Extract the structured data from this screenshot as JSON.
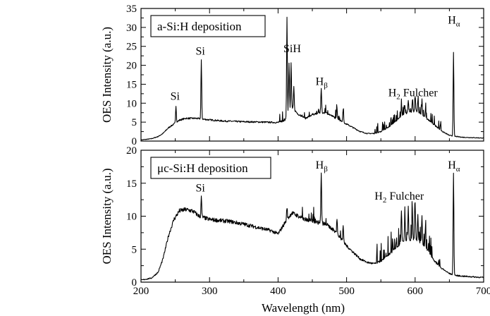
{
  "chart_data": [
    {
      "type": "line",
      "panel": "top",
      "xlabel": "",
      "ylabel": "OES Intensity (a.u.)",
      "xlim": [
        200,
        700
      ],
      "ylim": [
        0,
        35
      ],
      "y_ticks": [
        "0",
        "5",
        "10",
        "15",
        "20",
        "25",
        "30",
        "35"
      ],
      "box_label": "a-Si:H deposition",
      "annotations": [
        {
          "text": "Si",
          "sub": "",
          "x": 251
        },
        {
          "text": "Si",
          "sub": "",
          "x": 288
        },
        {
          "text": "SiH",
          "sub": "",
          "x": 414
        },
        {
          "text": "H",
          "sub": "β",
          "x": 463
        },
        {
          "text": "H",
          "sub": "2",
          "text2": " Fulcher",
          "x": 602
        },
        {
          "text": "H",
          "sub": "α",
          "x": 656
        }
      ],
      "baseline": [
        [
          200,
          0.3
        ],
        [
          215,
          0.6
        ],
        [
          225,
          1.2
        ],
        [
          232,
          2.0
        ],
        [
          240,
          3.5
        ],
        [
          248,
          4.5
        ],
        [
          256,
          5.5
        ],
        [
          265,
          6.0
        ],
        [
          280,
          6.0
        ],
        [
          300,
          5.6
        ],
        [
          320,
          5.3
        ],
        [
          350,
          5.1
        ],
        [
          380,
          5.0
        ],
        [
          400,
          4.9
        ],
        [
          410,
          5.5
        ],
        [
          420,
          9.0
        ],
        [
          430,
          7.0
        ],
        [
          440,
          6.0
        ],
        [
          450,
          7.0
        ],
        [
          460,
          7.5
        ],
        [
          470,
          7.5
        ],
        [
          480,
          6.5
        ],
        [
          490,
          5.5
        ],
        [
          500,
          4.5
        ],
        [
          510,
          3.5
        ],
        [
          520,
          2.5
        ],
        [
          530,
          2.0
        ],
        [
          540,
          2.0
        ],
        [
          550,
          2.5
        ],
        [
          560,
          3.5
        ],
        [
          570,
          5.0
        ],
        [
          580,
          6.5
        ],
        [
          590,
          7.5
        ],
        [
          600,
          8.0
        ],
        [
          610,
          7.0
        ],
        [
          620,
          5.5
        ],
        [
          630,
          4.0
        ],
        [
          640,
          2.5
        ],
        [
          650,
          1.5
        ],
        [
          660,
          1.2
        ],
        [
          670,
          1.0
        ],
        [
          685,
          0.9
        ],
        [
          700,
          0.8
        ]
      ],
      "peaks": [
        [
          251,
          4.5
        ],
        [
          288,
          15.5
        ],
        [
          413,
          26
        ],
        [
          416,
          13
        ],
        [
          419,
          12
        ],
        [
          423,
          6
        ],
        [
          463,
          6.5
        ],
        [
          486,
          3
        ],
        [
          495,
          3.5
        ],
        [
          580,
          3
        ],
        [
          585,
          2.5
        ],
        [
          590,
          3.5
        ],
        [
          596,
          3
        ],
        [
          600,
          3.5
        ],
        [
          604,
          3
        ],
        [
          610,
          3
        ],
        [
          615,
          2
        ],
        [
          656,
          22
        ]
      ]
    },
    {
      "type": "line",
      "panel": "bottom",
      "xlabel": "Wavelength (nm)",
      "ylabel": "OES Intensity (a.u.)",
      "xlim": [
        200,
        700
      ],
      "ylim": [
        0,
        20
      ],
      "x_ticks": [
        "200",
        "300",
        "400",
        "500",
        "600",
        "700"
      ],
      "y_ticks": [
        "0",
        "5",
        "10",
        "15",
        "20"
      ],
      "box_label": "μc-Si:H deposition",
      "annotations": [
        {
          "text": "Si",
          "sub": "",
          "x": 288
        },
        {
          "text": "H",
          "sub": "β",
          "x": 463
        },
        {
          "text": "H",
          "sub": "2",
          "text2": " Fulcher",
          "x": 582
        },
        {
          "text": "H",
          "sub": "α",
          "x": 656
        }
      ],
      "baseline": [
        [
          200,
          0.3
        ],
        [
          215,
          0.6
        ],
        [
          225,
          1.5
        ],
        [
          232,
          3.5
        ],
        [
          240,
          7.0
        ],
        [
          248,
          9.5
        ],
        [
          256,
          10.8
        ],
        [
          265,
          11.0
        ],
        [
          275,
          10.8
        ],
        [
          285,
          10.0
        ],
        [
          300,
          9.5
        ],
        [
          330,
          9.2
        ],
        [
          350,
          8.8
        ],
        [
          370,
          8.3
        ],
        [
          390,
          7.8
        ],
        [
          400,
          7.3
        ],
        [
          410,
          9.0
        ],
        [
          420,
          10.5
        ],
        [
          430,
          10.0
        ],
        [
          440,
          9.5
        ],
        [
          450,
          9.3
        ],
        [
          460,
          9.0
        ],
        [
          470,
          8.8
        ],
        [
          480,
          8.0
        ],
        [
          490,
          6.8
        ],
        [
          500,
          5.5
        ],
        [
          510,
          4.5
        ],
        [
          520,
          3.5
        ],
        [
          530,
          3.0
        ],
        [
          540,
          2.8
        ],
        [
          550,
          3.2
        ],
        [
          560,
          4.0
        ],
        [
          570,
          5.0
        ],
        [
          580,
          6.0
        ],
        [
          590,
          6.5
        ],
        [
          600,
          6.5
        ],
        [
          610,
          6.0
        ],
        [
          620,
          4.5
        ],
        [
          630,
          3.0
        ],
        [
          640,
          2.0
        ],
        [
          650,
          1.3
        ],
        [
          660,
          1.0
        ],
        [
          670,
          0.9
        ],
        [
          685,
          0.8
        ],
        [
          700,
          0.7
        ]
      ],
      "peaks": [
        [
          288,
          3
        ],
        [
          413,
          2
        ],
        [
          463,
          7.5
        ],
        [
          486,
          2.5
        ],
        [
          495,
          2.5
        ],
        [
          580,
          5
        ],
        [
          585,
          4
        ],
        [
          590,
          5
        ],
        [
          596,
          4.5
        ],
        [
          600,
          5.5
        ],
        [
          604,
          4
        ],
        [
          610,
          4
        ],
        [
          615,
          3
        ],
        [
          656,
          15.5
        ]
      ]
    }
  ]
}
